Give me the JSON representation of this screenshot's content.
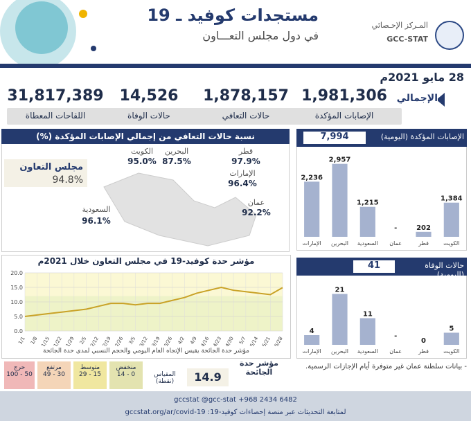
{
  "header": {
    "title": "مستجدات كوفيد ـ 19",
    "subtitle": "في دول مجلس التعـــاون",
    "logo_ar": "المـركز الإحـصائي",
    "logo_en": "GCC-STAT"
  },
  "date": "28 مايو 2021م",
  "totals_label": "الإجمالي",
  "kpis": [
    {
      "label": "الإصابات المؤكدة",
      "value": "1,981,306"
    },
    {
      "label": "حالات التعافي",
      "value": "1,878,157"
    },
    {
      "label": "حالات الوفاة",
      "value": "14,526"
    },
    {
      "label": "اللقاحات المعطاة",
      "value": "31,817,389"
    }
  ],
  "recovery": {
    "title": "نسبة حالات التعافي من إجمالي الإصابات المؤكدة (%)",
    "gcc_label": "مجلس التعاون",
    "gcc_value": "94.8%",
    "countries": [
      {
        "name": "الكويت",
        "value": "95.0%"
      },
      {
        "name": "البحرين",
        "value": "87.5%"
      },
      {
        "name": "قطر",
        "value": "97.9%"
      },
      {
        "name": "الإمارات",
        "value": "96.4%"
      },
      {
        "name": "عمان",
        "value": "92.2%"
      },
      {
        "name": "السعودية",
        "value": "96.1%"
      }
    ]
  },
  "daily_cases": {
    "label": "الإصابات المؤكدة (اليومية)",
    "total": "7,994"
  },
  "daily_deaths": {
    "label": "حالات الوفاة (اليومية)",
    "total": "41"
  },
  "line_chart": {
    "title": "مؤشر حدة كوفيد-19 في مجلس التعاون خلال 2021م",
    "note": "مؤشر حدة الجائحة يقيس الإتجاه العام اليومي والحجم النسبي لمدى حدة الجائحة"
  },
  "severity": {
    "index_label": "مؤشر حدة الجائحة",
    "index_value": "14.9",
    "scale_label": "المقياس (نقطة)",
    "levels": [
      {
        "name": "منخفض",
        "range": "0 - 14",
        "color": "#e3e3b0"
      },
      {
        "name": "متوسط",
        "range": "15 - 29",
        "color": "#f0e7a0"
      },
      {
        "name": "مرتفع",
        "range": "30 - 49",
        "color": "#f4d5b8"
      },
      {
        "name": "حرج",
        "range": "50 - 100",
        "color": "#f0b8b8"
      }
    ]
  },
  "note": "- بيانات سلطنة عمان غير متوفرة أيام الإجازات الرسمية.",
  "footer": {
    "line1": "gccstat @gcc-stat +968 2434 6482",
    "line2": "لمتابعة التحديثات عبر منصة إحصاءات كوفيد-19: gccstat.org/ar/covid-19"
  },
  "chart_data": [
    {
      "type": "bar",
      "title": "الإصابات المؤكدة (اليومية)",
      "categories": [
        "الإمارات",
        "البحرين",
        "السعودية",
        "عمان",
        "قطر",
        "الكويت"
      ],
      "values": [
        2236,
        2957,
        1215,
        null,
        202,
        1384
      ],
      "labels": [
        "2,236",
        "2,957",
        "1,215",
        "-",
        "202",
        "1,384"
      ],
      "ylim": [
        0,
        3200
      ]
    },
    {
      "type": "bar",
      "title": "حالات الوفاة (اليومية)",
      "categories": [
        "الإمارات",
        "البحرين",
        "السعودية",
        "عمان",
        "قطر",
        "الكويت"
      ],
      "values": [
        4,
        21,
        11,
        null,
        0,
        5
      ],
      "labels": [
        "4",
        "21",
        "11",
        "-",
        "0",
        "5"
      ],
      "ylim": [
        0,
        24
      ]
    },
    {
      "type": "line",
      "title": "مؤشر حدة كوفيد-19 في مجلس التعاون خلال 2021م",
      "x": [
        "1/1",
        "1/8",
        "1/15",
        "1/22",
        "1/29",
        "2/5",
        "2/12",
        "2/19",
        "2/26",
        "3/5",
        "3/12",
        "3/19",
        "3/26",
        "4/2",
        "4/9",
        "4/16",
        "4/23",
        "4/30",
        "5/7",
        "5/14",
        "5/21",
        "5/28"
      ],
      "y": [
        5.0,
        5.5,
        6.0,
        6.5,
        7.0,
        7.5,
        8.5,
        9.5,
        9.5,
        9.0,
        9.5,
        9.5,
        10.5,
        11.5,
        13.0,
        14.0,
        15.0,
        14.0,
        13.5,
        13.0,
        12.5,
        14.9
      ],
      "ylim": [
        0,
        20
      ],
      "yticks": [
        "0.0",
        "5.0",
        "10.0",
        "15.0",
        "20.0"
      ],
      "grid": true
    }
  ]
}
